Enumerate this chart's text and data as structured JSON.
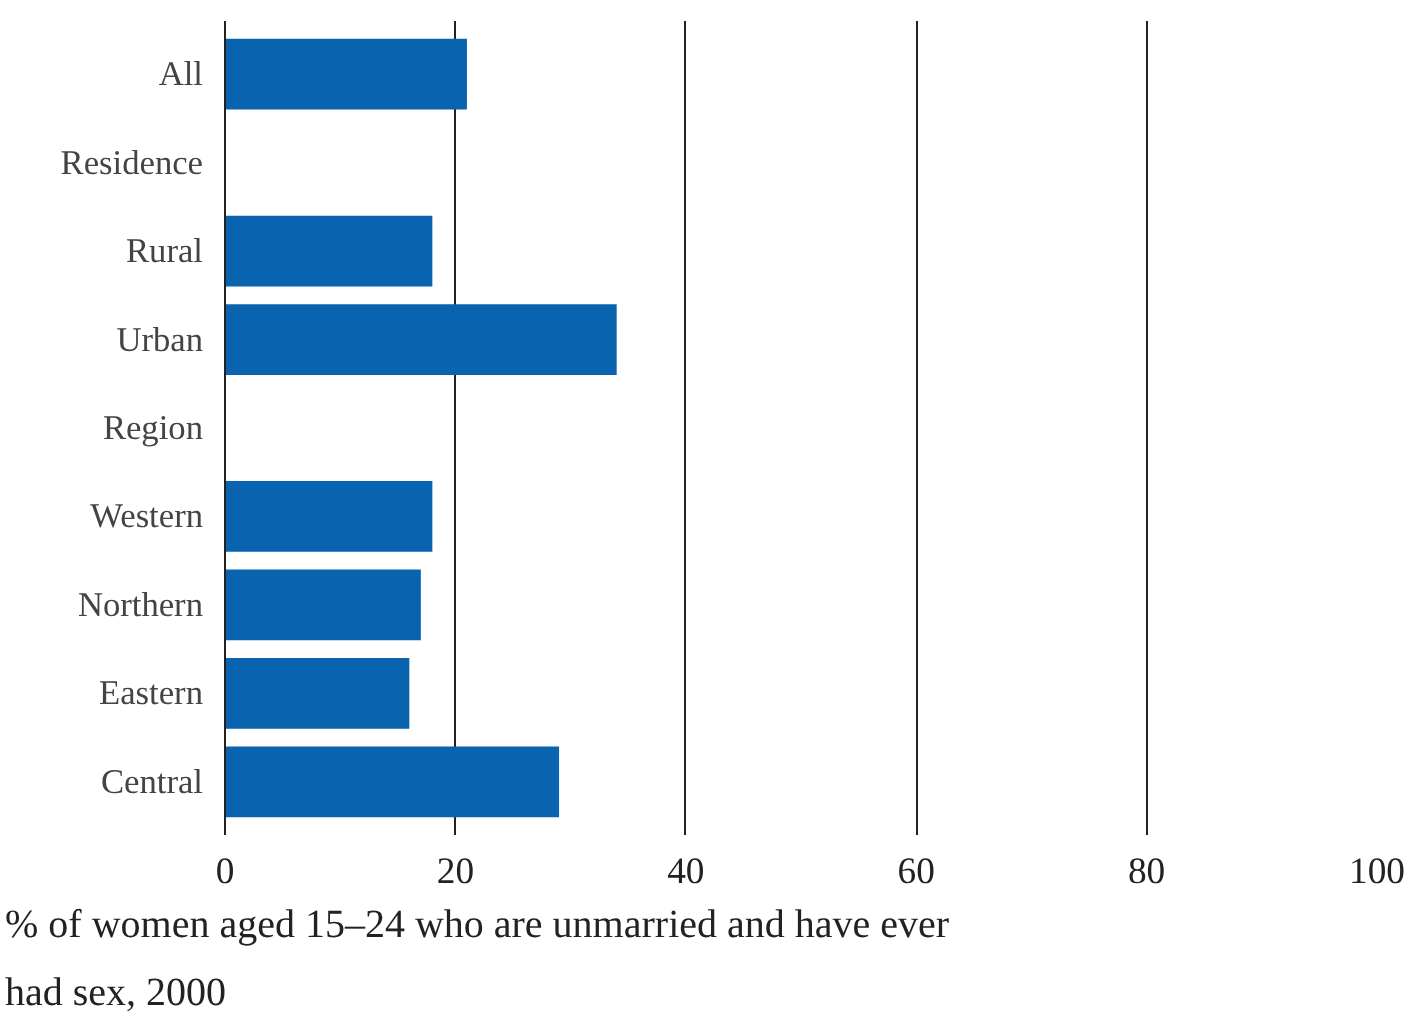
{
  "chart_data": {
    "type": "bar",
    "orientation": "horizontal",
    "xlabel": "% of women aged 15–24 who are unmarried and have ever had sex, 2000",
    "categories": [
      "All",
      "Residence",
      "Rural",
      "Urban",
      "Region",
      "Western",
      "Northern",
      "Eastern",
      "Central"
    ],
    "values": [
      21,
      null,
      18,
      34,
      null,
      18,
      17,
      16,
      29
    ],
    "color": "#0a63ae",
    "xlim": [
      0,
      100
    ],
    "xticks": [
      0,
      20,
      40,
      60,
      80,
      100
    ],
    "grid": "x"
  }
}
